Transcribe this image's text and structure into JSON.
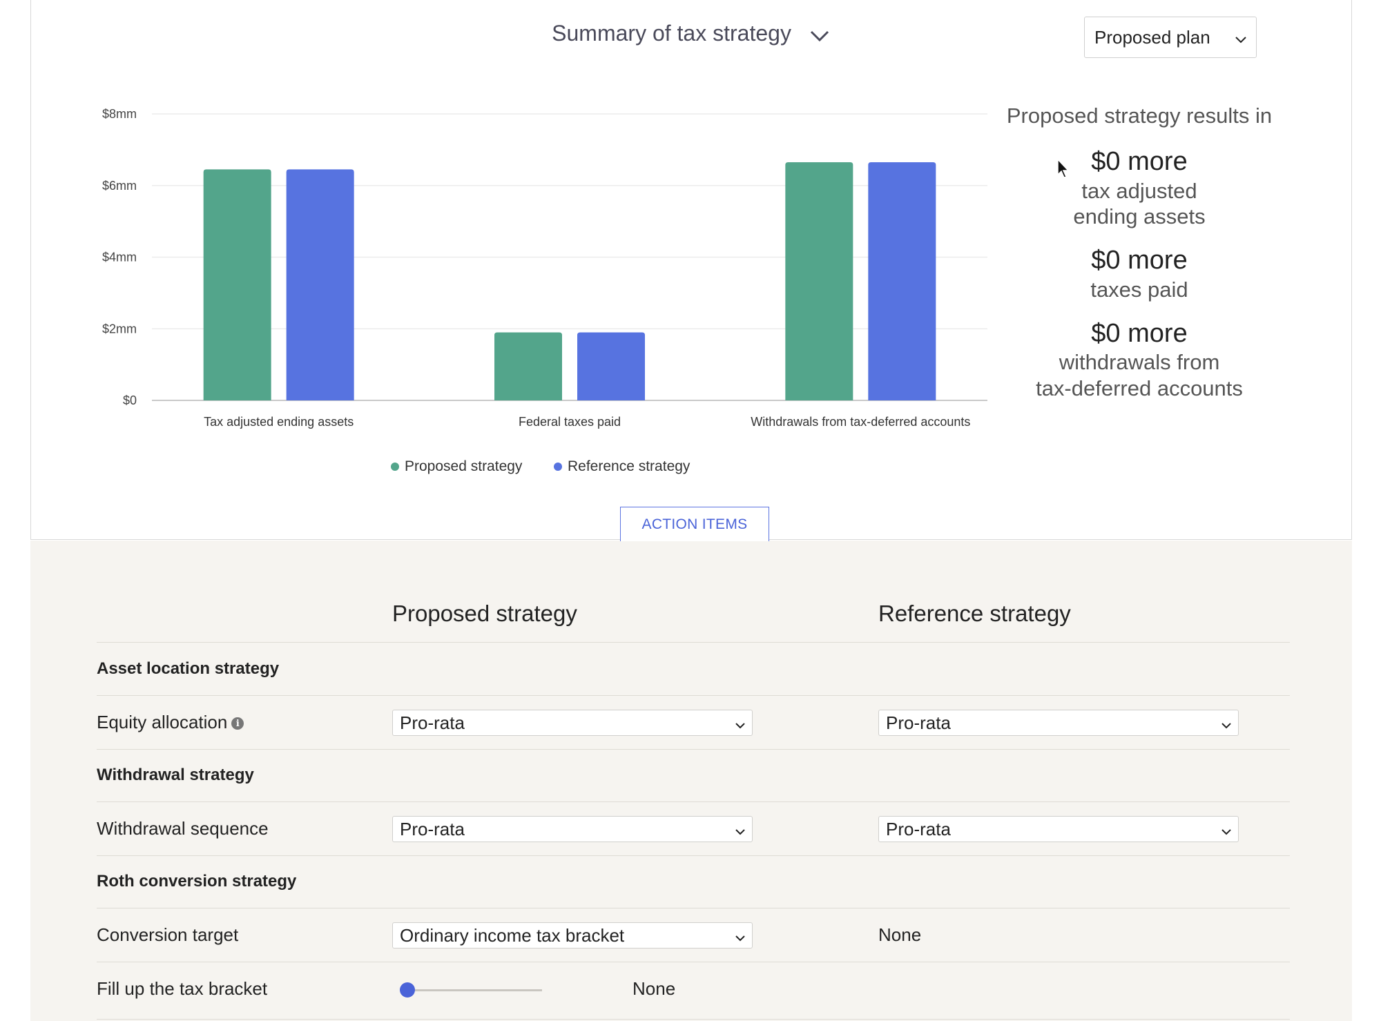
{
  "header": {
    "title": "Summary of tax strategy",
    "plan_select": "Proposed plan"
  },
  "chart_data": {
    "type": "bar",
    "categories": [
      "Tax adjusted ending assets",
      "Federal taxes paid",
      "Withdrawals from tax-deferred accounts"
    ],
    "series": [
      {
        "name": "Proposed strategy",
        "values": [
          6.45,
          1.9,
          6.65
        ],
        "color": "#53a58b"
      },
      {
        "name": "Reference strategy",
        "values": [
          6.45,
          1.9,
          6.65
        ],
        "color": "#5773e0"
      }
    ],
    "y_ticks": [
      "$0",
      "$2mm",
      "$4mm",
      "$6mm",
      "$8mm"
    ],
    "ylim": [
      0,
      8
    ],
    "grid": true,
    "legend": "bottom"
  },
  "results": {
    "heading": "Proposed strategy results in",
    "items": [
      {
        "value": "$0 more",
        "label_line1": "tax adjusted",
        "label_line2": "ending assets"
      },
      {
        "value": "$0 more",
        "label_line1": "taxes paid",
        "label_line2": ""
      },
      {
        "value": "$0 more",
        "label_line1": "withdrawals from",
        "label_line2": "tax-deferred accounts"
      }
    ]
  },
  "action_items_label": "ACTION ITEMS",
  "table": {
    "col_proposed": "Proposed strategy",
    "col_reference": "Reference strategy",
    "section_asset": "Asset location strategy",
    "equity_label": "Equity allocation",
    "equity_proposed": "Pro-rata",
    "equity_reference": "Pro-rata",
    "section_withdrawal": "Withdrawal strategy",
    "sequence_label": "Withdrawal sequence",
    "sequence_proposed": "Pro-rata",
    "sequence_reference": "Pro-rata",
    "section_roth": "Roth conversion strategy",
    "conversion_label": "Conversion target",
    "conversion_proposed": "Ordinary income tax bracket",
    "conversion_reference": "None",
    "fill_label": "Fill up the tax bracket",
    "fill_value": "None",
    "fill_slider_fraction": 0
  },
  "icons": {
    "info": "info-icon",
    "chevron": "chevron-down-icon",
    "cursor": "mouse-cursor-icon"
  }
}
